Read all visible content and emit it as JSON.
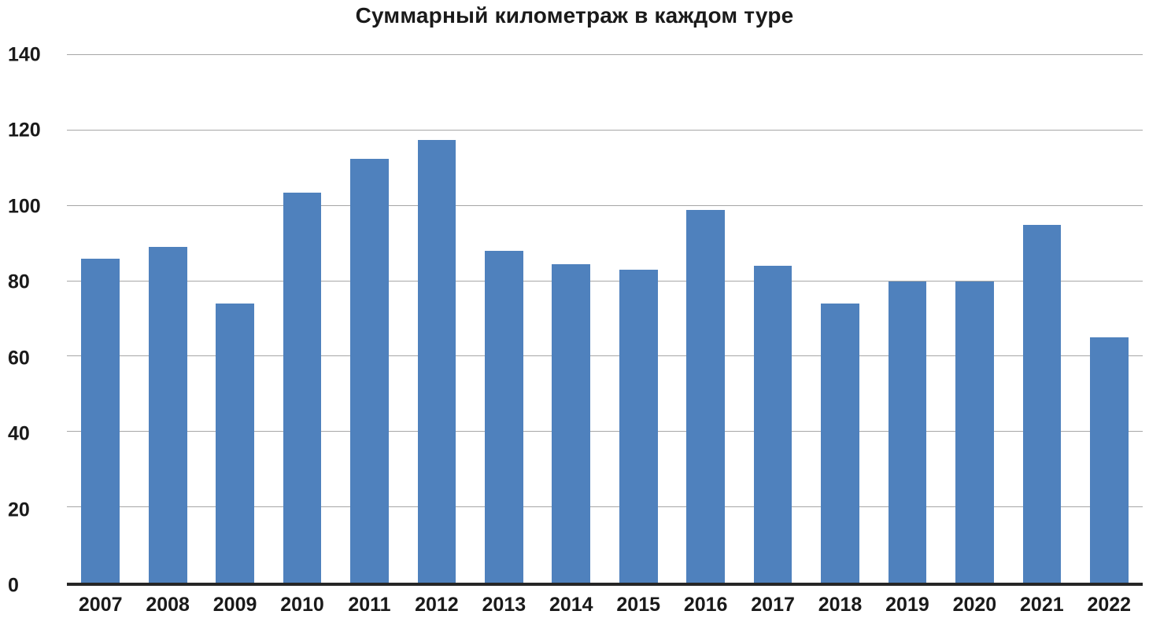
{
  "chart_data": {
    "type": "bar",
    "title": "Суммарный километраж в каждом туре",
    "categories": [
      "2007",
      "2008",
      "2009",
      "2010",
      "2011",
      "2012",
      "2013",
      "2014",
      "2015",
      "2016",
      "2017",
      "2018",
      "2019",
      "2020",
      "2021",
      "2022"
    ],
    "values": [
      86,
      89,
      74,
      103.5,
      112.5,
      117.5,
      88,
      84.5,
      83,
      99,
      84,
      74,
      80,
      80,
      95,
      65
    ],
    "xlabel": "",
    "ylabel": "",
    "ylim": [
      0,
      140
    ],
    "yticks": [
      0,
      20,
      40,
      60,
      80,
      100,
      120,
      140
    ],
    "grid": true,
    "legend": false,
    "bar_color": "#4f81bd",
    "gridline_color": "#a6a6a6",
    "axis_color": "#262626"
  }
}
